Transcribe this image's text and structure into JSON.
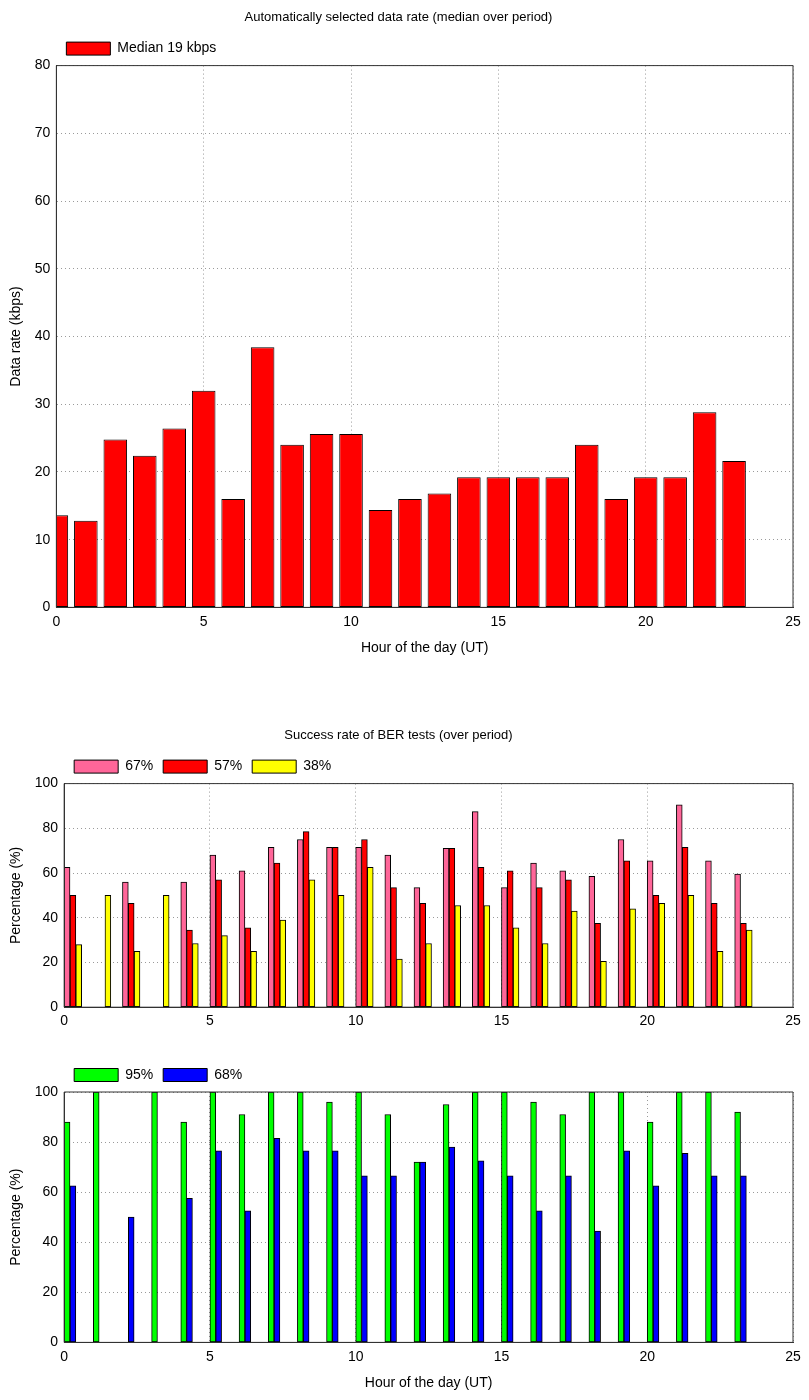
{
  "chart_data": [
    {
      "type": "bar",
      "title": "Automatically selected data rate (median over period)",
      "xlabel": "Hour of the day (UT)",
      "ylabel": "Data rate (kbps)",
      "x": [
        0,
        1,
        2,
        3,
        4,
        5,
        6,
        7,
        8,
        9,
        10,
        11,
        12,
        13,
        14,
        15,
        16,
        17,
        18,
        19,
        20,
        21,
        22,
        23
      ],
      "series": [
        {
          "name": "Median 19 kbps",
          "color": "#ff0000",
          "values": [
            13.6,
            12.8,
            24.8,
            22.4,
            26.4,
            32,
            16,
            38.4,
            24,
            25.6,
            25.6,
            14.4,
            16,
            16.8,
            19.2,
            19.2,
            19.2,
            19.2,
            24,
            16,
            19.2,
            19.2,
            28.8,
            21.6
          ]
        }
      ],
      "xlim": [
        0,
        25
      ],
      "xticks": [
        0,
        5,
        10,
        15,
        20,
        25
      ],
      "ylim": [
        0,
        80
      ],
      "yticks": [
        0,
        10,
        20,
        30,
        40,
        50,
        60,
        70,
        80
      ],
      "grid": true,
      "legend": "top left"
    },
    {
      "type": "bar",
      "title": "Success rate of BER tests (over period)",
      "ylabel": "Percentage (%)",
      "series": [
        {
          "name": "67%",
          "color": "#ff6699",
          "x": [
            0.1,
            1.1,
            2.1,
            3.1,
            4.1,
            5.1,
            6.1,
            7.1,
            8.1,
            9.1,
            10.1,
            11.1,
            12.1,
            13.1,
            14.1,
            15.1,
            16.1,
            17.1,
            18.1,
            19.1,
            20.1,
            21.1,
            22.1,
            23.1
          ],
          "values": [
            62.5,
            null,
            56,
            null,
            56,
            68,
            61,
            71.5,
            75,
            71.5,
            71.5,
            68,
            53.5,
            71,
            87.5,
            53.5,
            64.5,
            61,
            58.5,
            75,
            65.5,
            90.5,
            65.5,
            59.5
          ]
        },
        {
          "name": "57%",
          "color": "#ff0000",
          "x": [
            0.3,
            1.3,
            2.3,
            3.3,
            4.3,
            5.3,
            6.3,
            7.3,
            8.3,
            9.3,
            10.3,
            11.3,
            12.3,
            13.3,
            14.3,
            15.3,
            16.3,
            17.3,
            18.3,
            19.3,
            20.3,
            21.3,
            22.3,
            23.3
          ],
          "values": [
            50,
            null,
            46.5,
            null,
            34.5,
            57,
            35.5,
            64.5,
            78.5,
            71.5,
            75,
            53.5,
            46.5,
            71,
            62.5,
            61,
            53.5,
            57,
            37.5,
            65.5,
            50,
            71.5,
            46.5,
            37.5
          ]
        },
        {
          "name": "38%",
          "color": "#ffff00",
          "x": [
            0.5,
            1.5,
            2.5,
            3.5,
            4.5,
            5.5,
            6.5,
            7.5,
            8.5,
            9.5,
            10.5,
            11.5,
            12.5,
            13.5,
            14.5,
            15.5,
            16.5,
            17.5,
            18.5,
            19.5,
            20.5,
            21.5,
            22.5,
            23.5
          ],
          "values": [
            28,
            50,
            25,
            50,
            28.5,
            32,
            25,
            39,
            57,
            50,
            62.5,
            21.5,
            28.5,
            45.5,
            45.5,
            35.5,
            28.5,
            43,
            20.5,
            44,
            46.5,
            50,
            25,
            34.5
          ]
        }
      ],
      "xlim": [
        0,
        25
      ],
      "xticks": [
        0,
        5,
        10,
        15,
        20,
        25
      ],
      "ylim": [
        0,
        100
      ],
      "yticks": [
        0,
        20,
        40,
        60,
        80,
        100
      ],
      "grid": true,
      "legend": "top left"
    },
    {
      "type": "bar",
      "xlabel": "Hour of the day (UT)",
      "ylabel": "Percentage (%)",
      "series": [
        {
          "name": "95%",
          "color": "#00ff00",
          "x": [
            0.1,
            1.1,
            2.1,
            3.1,
            4.1,
            5.1,
            6.1,
            7.1,
            8.1,
            9.1,
            10.1,
            11.1,
            12.1,
            13.1,
            14.1,
            15.1,
            16.1,
            17.1,
            18.1,
            19.1,
            20.1,
            21.1,
            22.1,
            23.1
          ],
          "values": [
            88,
            100,
            null,
            100,
            88,
            100,
            91,
            100,
            100,
            96,
            100,
            91,
            72,
            95,
            100,
            100,
            96,
            91,
            100,
            100,
            88,
            100,
            100,
            92
          ]
        },
        {
          "name": "68%",
          "color": "#0000ff",
          "x": [
            0.3,
            1.3,
            2.3,
            3.3,
            4.3,
            5.3,
            6.3,
            7.3,
            8.3,
            9.3,
            10.3,
            11.3,
            12.3,
            13.3,
            14.3,
            15.3,
            16.3,
            17.3,
            18.3,
            19.3,
            20.3,
            21.3,
            22.3,
            23.3
          ],
          "values": [
            62.5,
            null,
            50,
            null,
            57.5,
            76.5,
            52.5,
            81.5,
            76.5,
            76.5,
            66.5,
            66.5,
            72,
            78,
            72.5,
            66.5,
            52.5,
            66.5,
            44.5,
            76.5,
            62.5,
            75.5,
            66.5,
            66.5
          ]
        }
      ],
      "xlim": [
        0,
        25
      ],
      "xticks": [
        0,
        5,
        10,
        15,
        20,
        25
      ],
      "ylim": [
        0,
        100
      ],
      "yticks": [
        0,
        20,
        40,
        60,
        80,
        100
      ],
      "grid": true,
      "legend": "top left"
    }
  ]
}
